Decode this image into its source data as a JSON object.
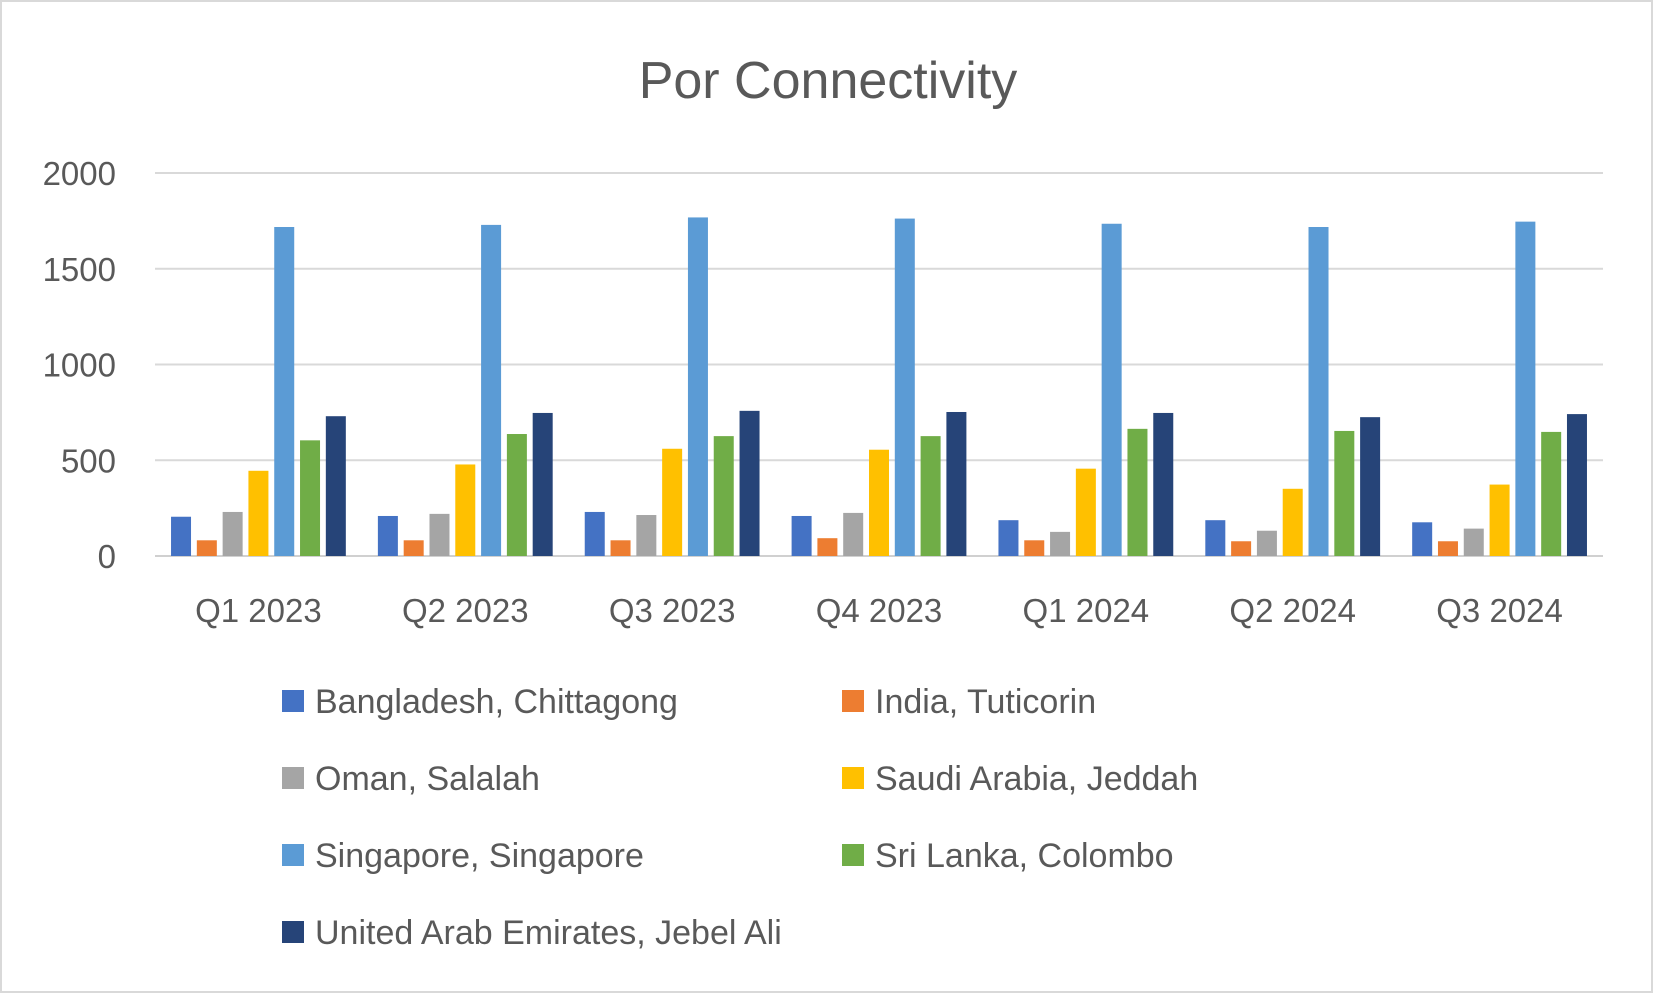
{
  "chart_data": {
    "type": "bar",
    "title": "Por Connectivity",
    "xlabel": "",
    "ylabel": "",
    "ylim": [
      0,
      2000
    ],
    "yticks": [
      0,
      500,
      1000,
      1500,
      2000
    ],
    "grid": true,
    "legend_position": "bottom",
    "categories": [
      "Q1 2023",
      "Q2 2023",
      "Q3 2023",
      "Q4 2023",
      "Q1 2024",
      "Q2 2024",
      "Q3 2024"
    ],
    "series": [
      {
        "name": "Bangladesh, Chittagong",
        "color": "#4472C4",
        "values": [
          205,
          209,
          230,
          209,
          187,
          187,
          176
        ]
      },
      {
        "name": "India, Tuticorin",
        "color": "#ED7D31",
        "values": [
          82,
          82,
          82,
          93,
          82,
          77,
          77
        ]
      },
      {
        "name": "Oman, Salalah",
        "color": "#A5A5A5",
        "values": [
          230,
          220,
          214,
          225,
          126,
          132,
          143
        ]
      },
      {
        "name": "Saudi Arabia, Jeddah",
        "color": "#FFC000",
        "values": [
          445,
          478,
          560,
          555,
          456,
          351,
          373
        ]
      },
      {
        "name": "Singapore, Singapore",
        "color": "#5B9BD5",
        "values": [
          1718,
          1729,
          1768,
          1762,
          1735,
          1718,
          1746
        ]
      },
      {
        "name": "Sri Lanka, Colombo",
        "color": "#70AD47",
        "values": [
          604,
          637,
          626,
          626,
          664,
          653,
          648
        ]
      },
      {
        "name": "United Arab Emirates, Jebel Ali",
        "color": "#264478",
        "values": [
          730,
          747,
          758,
          752,
          747,
          725,
          741
        ]
      }
    ]
  }
}
